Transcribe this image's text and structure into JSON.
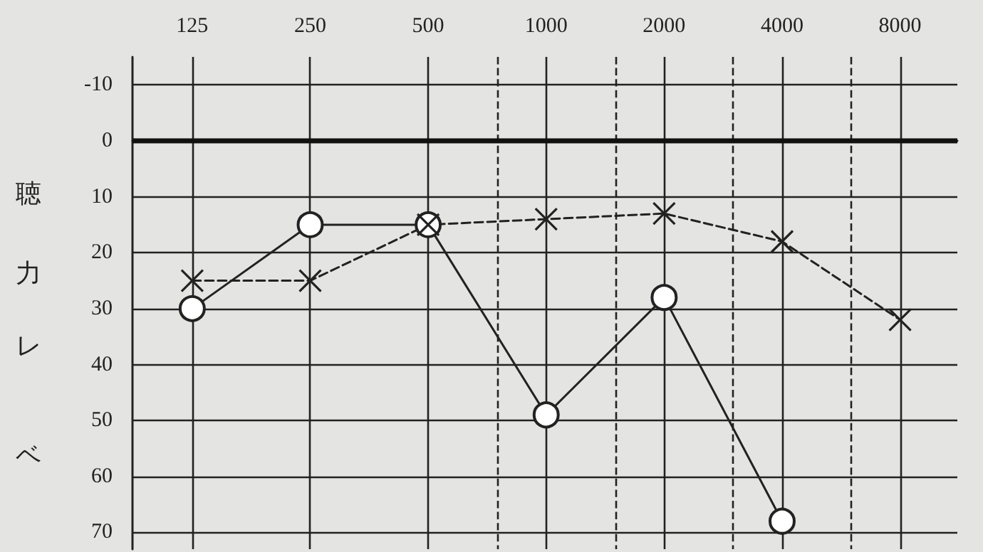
{
  "chart_data": {
    "type": "line",
    "ylabel": "聴力レベ",
    "log": "x",
    "xlim": [
      88,
      11200
    ],
    "xticks": [
      125,
      250,
      500,
      {
        "value": 750,
        "label": null
      },
      1000,
      {
        "value": 1500,
        "label": null
      },
      2000,
      {
        "value": 3000,
        "label": null
      },
      4000,
      {
        "value": 6000,
        "label": null
      },
      8000
    ],
    "ylim": [
      73,
      -15
    ],
    "yticks": [
      -10,
      0,
      10,
      20,
      30,
      40,
      50,
      60,
      70
    ],
    "grid": true,
    "ref_lines": [
      {
        "axis": "y",
        "value": 0,
        "color": "#111111"
      }
    ],
    "series": [
      {
        "color": "#222222",
        "marker": "circle",
        "line_style": "solid",
        "x": [
          125,
          250,
          500,
          1000,
          2000,
          4000
        ],
        "values": [
          30,
          15,
          15,
          49,
          28,
          68
        ]
      },
      {
        "color": "#222222",
        "marker": "cross",
        "line_style": "dashed",
        "x": [
          125,
          250,
          500,
          1000,
          2000,
          4000,
          8000
        ],
        "values": [
          25,
          25,
          15,
          14,
          13,
          18,
          32
        ]
      }
    ]
  }
}
